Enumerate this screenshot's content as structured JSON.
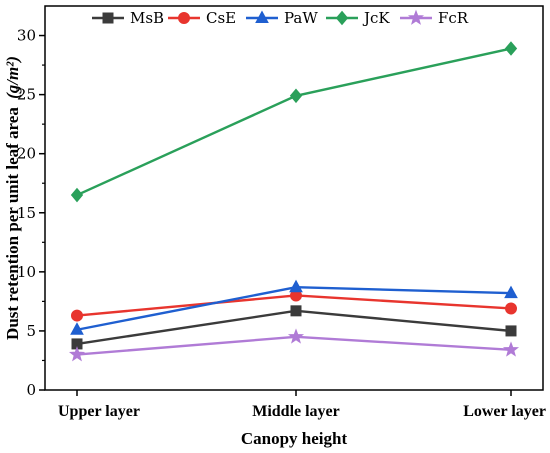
{
  "chart_data": {
    "type": "line",
    "categories": [
      "Upper layer",
      "Middle layer",
      "Lower layer"
    ],
    "series": [
      {
        "name": "MsB",
        "values": [
          3.9,
          6.7,
          5.0
        ],
        "color": "#3b3b3b",
        "marker": "square"
      },
      {
        "name": "CsE",
        "values": [
          6.3,
          8.0,
          6.9
        ],
        "color": "#e8352e",
        "marker": "circle"
      },
      {
        "name": "PaW",
        "values": [
          5.1,
          8.7,
          8.2
        ],
        "color": "#1f5fd0",
        "marker": "triangle"
      },
      {
        "name": "JcK",
        "values": [
          16.5,
          24.9,
          28.9
        ],
        "color": "#2aa05a",
        "marker": "diamond"
      },
      {
        "name": "FcR",
        "values": [
          3.0,
          4.5,
          3.4
        ],
        "color": "#b07bd6",
        "marker": "star"
      }
    ],
    "title": "",
    "xlabel": "Canopy height",
    "ylabel": "Dust retention per unit leaf area",
    "ylabel_unit": "(g/m²)",
    "ylim": [
      0,
      32.5
    ],
    "yticks": [
      0,
      5,
      10,
      15,
      20,
      25,
      30
    ],
    "grid": false,
    "legend_position": "top"
  }
}
